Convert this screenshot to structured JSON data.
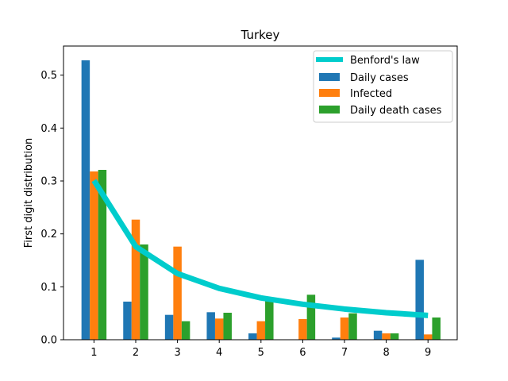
{
  "chart_data": {
    "type": "bar",
    "title": "Turkey",
    "xlabel": "",
    "ylabel": "First digit distribution",
    "categories": [
      "1",
      "2",
      "3",
      "4",
      "5",
      "6",
      "7",
      "8",
      "9"
    ],
    "ylim": [
      0,
      0.555
    ],
    "yticks": [
      "0.0",
      "0.1",
      "0.2",
      "0.3",
      "0.4",
      "0.5"
    ],
    "grid": false,
    "legend_position": "top-right",
    "series": [
      {
        "name": "Daily cases",
        "color": "#1f77b4",
        "values": [
          0.528,
          0.072,
          0.047,
          0.052,
          0.012,
          0.0,
          0.004,
          0.017,
          0.151
        ]
      },
      {
        "name": "Infected",
        "color": "#ff7f0e",
        "values": [
          0.318,
          0.227,
          0.176,
          0.04,
          0.035,
          0.039,
          0.042,
          0.012,
          0.01
        ]
      },
      {
        "name": "Daily death cases",
        "color": "#2ca02c",
        "values": [
          0.321,
          0.18,
          0.035,
          0.051,
          0.073,
          0.085,
          0.05,
          0.012,
          0.042
        ]
      }
    ],
    "line": {
      "name": "Benford's law",
      "color": "#00cccc",
      "values": [
        0.301,
        0.176,
        0.125,
        0.097,
        0.079,
        0.067,
        0.058,
        0.051,
        0.046
      ]
    }
  }
}
